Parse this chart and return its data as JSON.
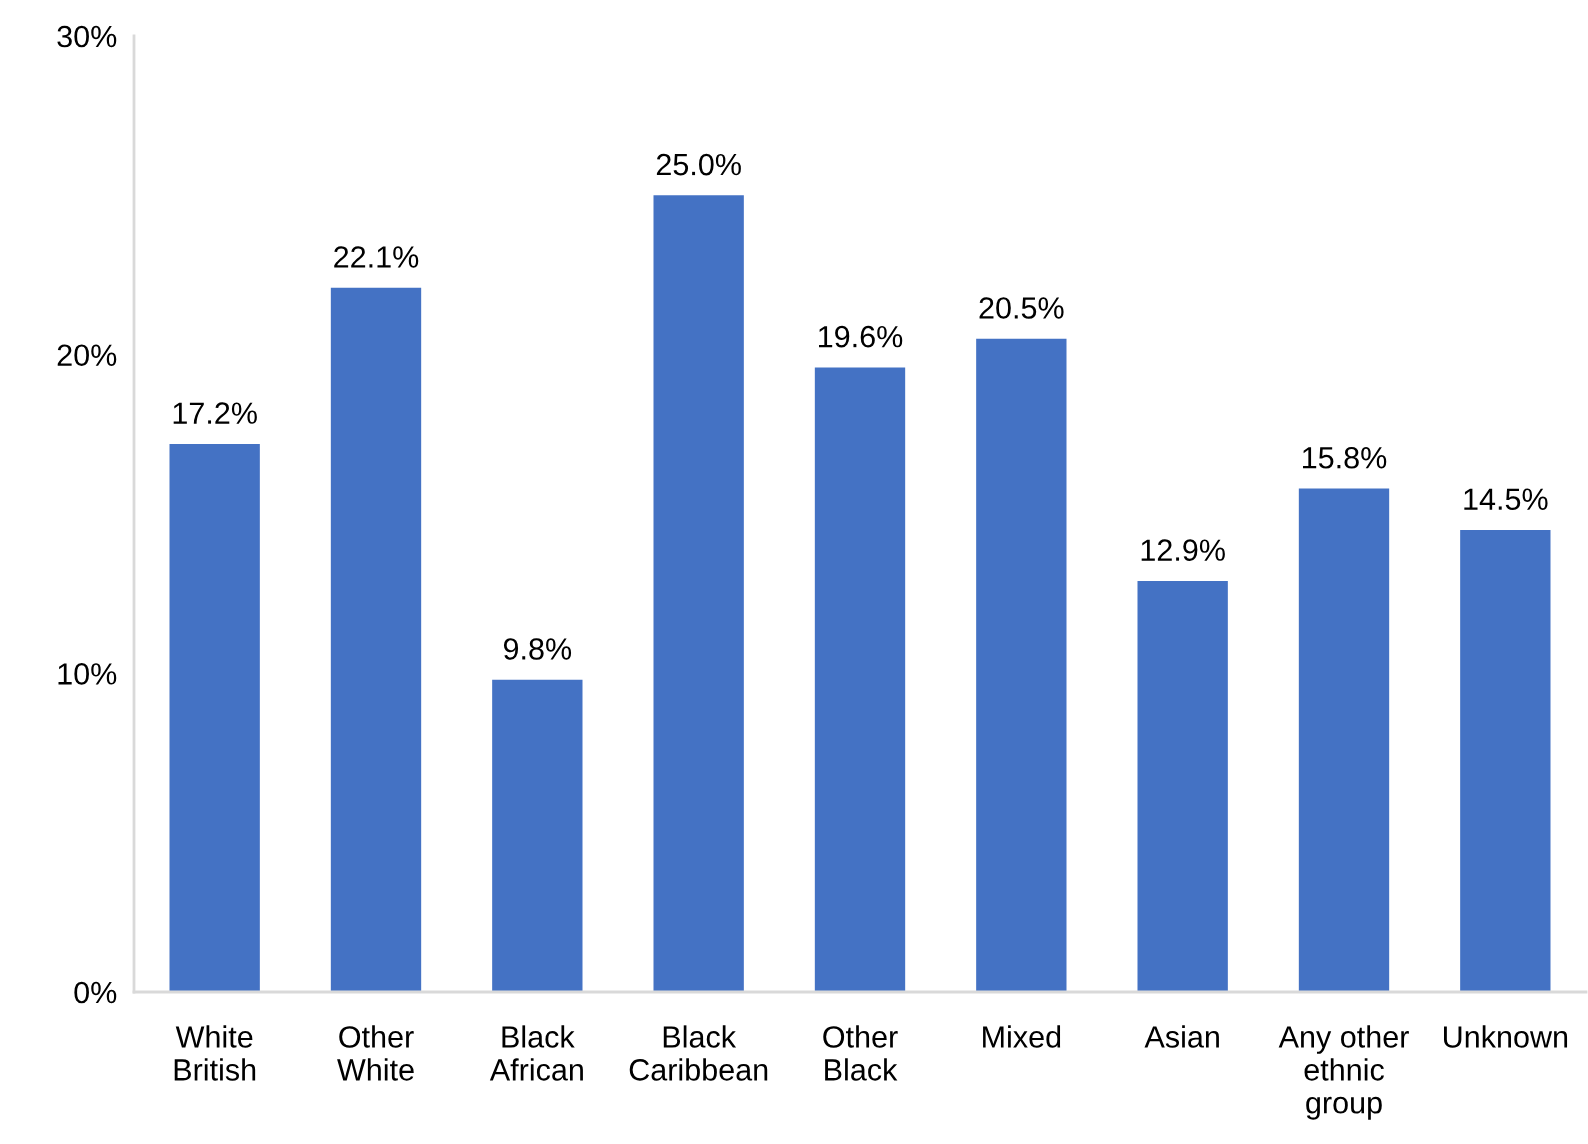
{
  "chart_data": {
    "type": "bar",
    "categories": [
      "White\nBritish",
      "Other\nWhite",
      "Black\nAfrican",
      "Black\nCaribbean",
      "Other\nBlack",
      "Mixed",
      "Asian",
      "Any other\nethnic\ngroup",
      "Unknown"
    ],
    "values": [
      17.2,
      22.1,
      9.8,
      25.0,
      19.6,
      20.5,
      12.9,
      15.8,
      14.5
    ],
    "value_labels": [
      "17.2%",
      "22.1%",
      "9.8%",
      "25.0%",
      "19.6%",
      "20.5%",
      "12.9%",
      "15.8%",
      "14.5%"
    ],
    "color": "#4472c4",
    "ylim": [
      0,
      30
    ],
    "yticks": [
      {
        "value": 0,
        "label": "0%"
      },
      {
        "value": 10,
        "label": "10%"
      },
      {
        "value": 20,
        "label": "20%"
      },
      {
        "value": 30,
        "label": "30%"
      }
    ],
    "grid": false
  }
}
